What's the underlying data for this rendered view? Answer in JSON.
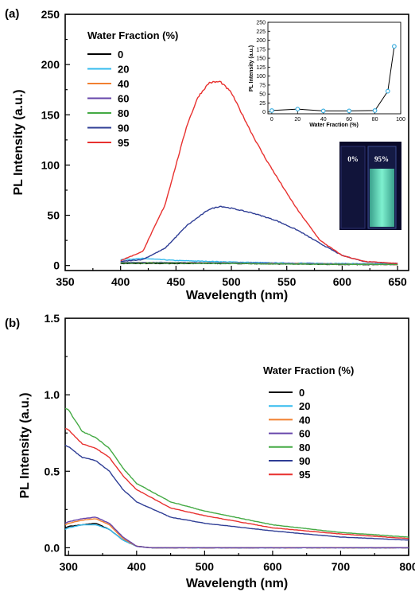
{
  "panels": {
    "a_label": "(a)",
    "b_label": "(b)"
  },
  "inset": {
    "ylabel": "PL Intensity (a.u.)",
    "xlabel": "Water Fraction (%)",
    "photo_labels": [
      "0%",
      "95%"
    ]
  },
  "chart_data": [
    {
      "type": "line",
      "panel": "(a)",
      "xlabel": "Wavelength (nm)",
      "ylabel": "PL Intensity (a.u.)",
      "xlim": [
        350,
        660
      ],
      "ylim": [
        -5,
        250
      ],
      "xticks": [
        350,
        400,
        450,
        500,
        550,
        600,
        650
      ],
      "yticks": [
        0,
        50,
        100,
        150,
        200,
        250
      ],
      "legend_title": "Water Fraction (%)",
      "legend_position": "top-left",
      "series": [
        {
          "name": "0",
          "color": "#000000",
          "x": [
            400,
            450,
            500,
            550,
            600,
            650
          ],
          "y": [
            2,
            2,
            2,
            1.5,
            1,
            1
          ]
        },
        {
          "name": "20",
          "color": "#33bbee",
          "x": [
            400,
            420,
            450,
            500,
            550,
            600,
            650
          ],
          "y": [
            6,
            7,
            5,
            3.5,
            2.5,
            2,
            1.5
          ]
        },
        {
          "name": "40",
          "color": "#f28030",
          "x": [
            400,
            450,
            500,
            550,
            600,
            650
          ],
          "y": [
            3,
            3,
            2.5,
            2,
            1.5,
            1
          ]
        },
        {
          "name": "60",
          "color": "#6644aa",
          "x": [
            400,
            450,
            500,
            550,
            600,
            650
          ],
          "y": [
            3,
            3,
            2.5,
            2,
            1.5,
            1
          ]
        },
        {
          "name": "80",
          "color": "#44aa44",
          "x": [
            400,
            450,
            500,
            550,
            600,
            650
          ],
          "y": [
            2.5,
            2.5,
            2,
            1.5,
            1.2,
            1
          ]
        },
        {
          "name": "90",
          "color": "#2e3d95",
          "x": [
            400,
            420,
            440,
            460,
            480,
            490,
            500,
            520,
            540,
            560,
            580,
            600,
            620,
            650
          ],
          "y": [
            4,
            6,
            17,
            40,
            56,
            59,
            57,
            52,
            45,
            35,
            22,
            10,
            4,
            2
          ]
        },
        {
          "name": "95",
          "color": "#e8312f",
          "x": [
            400,
            420,
            440,
            450,
            460,
            470,
            480,
            490,
            500,
            510,
            520,
            530,
            540,
            550,
            560,
            580,
            600,
            620,
            650
          ],
          "y": [
            5,
            14,
            60,
            100,
            140,
            168,
            182,
            183,
            172,
            150,
            128,
            108,
            90,
            72,
            55,
            25,
            10,
            4,
            2
          ]
        }
      ],
      "inset_data": {
        "x": [
          0,
          20,
          40,
          60,
          80,
          90,
          95
        ],
        "y": [
          4,
          8,
          3,
          3,
          4,
          58,
          183
        ],
        "xticks": [
          0,
          20,
          40,
          60,
          80,
          100
        ],
        "yticks": [
          0,
          25,
          50,
          75,
          100,
          125,
          150,
          175,
          200,
          225,
          250
        ],
        "xlim": [
          -3,
          100
        ],
        "ylim": [
          -5,
          250
        ]
      }
    },
    {
      "type": "line",
      "panel": "(b)",
      "xlabel": "Wavelength (nm)",
      "ylabel": "PL Intensity (a.u.)",
      "xlim": [
        295,
        800
      ],
      "ylim": [
        -0.05,
        1.5
      ],
      "xticks": [
        300,
        400,
        500,
        600,
        700,
        800
      ],
      "yticks": [
        "0.0",
        "0.5",
        "1.0",
        "1.5"
      ],
      "legend_title": "Water Fraction (%)",
      "legend_position": "top-right",
      "series": [
        {
          "name": "0",
          "color": "#000000",
          "x": [
            295,
            300,
            320,
            340,
            360,
            380,
            400,
            420,
            500,
            800
          ],
          "y": [
            0.13,
            0.14,
            0.15,
            0.16,
            0.12,
            0.05,
            0.01,
            0.0,
            0.0,
            0.0
          ]
        },
        {
          "name": "20",
          "color": "#33bbee",
          "x": [
            295,
            300,
            320,
            340,
            360,
            380,
            400,
            420,
            500,
            800
          ],
          "y": [
            0.12,
            0.13,
            0.15,
            0.15,
            0.12,
            0.05,
            0.01,
            0.0,
            0.0,
            0.0
          ]
        },
        {
          "name": "40",
          "color": "#f28030",
          "x": [
            295,
            300,
            320,
            340,
            360,
            380,
            400,
            420,
            500,
            800
          ],
          "y": [
            0.15,
            0.16,
            0.18,
            0.19,
            0.15,
            0.06,
            0.01,
            0.0,
            0.0,
            0.0
          ]
        },
        {
          "name": "60",
          "color": "#6644aa",
          "x": [
            295,
            300,
            320,
            340,
            360,
            380,
            400,
            420,
            500,
            800
          ],
          "y": [
            0.16,
            0.17,
            0.19,
            0.2,
            0.16,
            0.07,
            0.01,
            0.0,
            0.0,
            0.0
          ]
        },
        {
          "name": "80",
          "color": "#44aa44",
          "x": [
            295,
            300,
            320,
            340,
            360,
            380,
            400,
            450,
            500,
            600,
            700,
            800
          ],
          "y": [
            0.91,
            0.9,
            0.76,
            0.72,
            0.65,
            0.52,
            0.42,
            0.3,
            0.24,
            0.15,
            0.1,
            0.07
          ]
        },
        {
          "name": "90",
          "color": "#2e3d95",
          "x": [
            295,
            300,
            320,
            340,
            360,
            380,
            400,
            450,
            500,
            600,
            700,
            800
          ],
          "y": [
            0.67,
            0.66,
            0.59,
            0.57,
            0.5,
            0.38,
            0.3,
            0.2,
            0.16,
            0.11,
            0.07,
            0.05
          ]
        },
        {
          "name": "95",
          "color": "#e8312f",
          "x": [
            295,
            300,
            320,
            340,
            360,
            380,
            400,
            450,
            500,
            600,
            700,
            800
          ],
          "y": [
            0.78,
            0.77,
            0.68,
            0.65,
            0.59,
            0.47,
            0.38,
            0.26,
            0.21,
            0.13,
            0.09,
            0.06
          ]
        }
      ]
    }
  ]
}
